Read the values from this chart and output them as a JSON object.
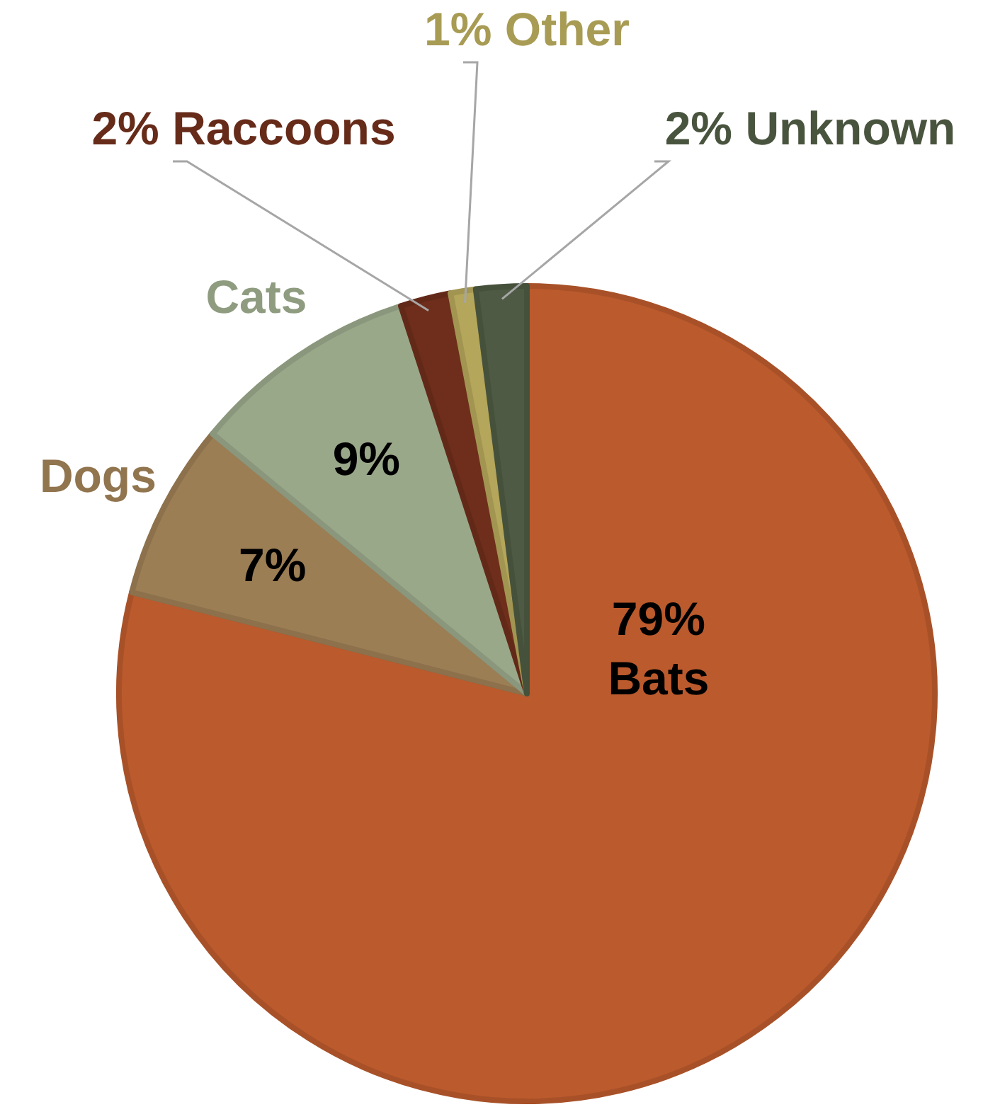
{
  "chart_data": {
    "type": "pie",
    "categories": [
      "Bats",
      "Dogs",
      "Cats",
      "Raccoons",
      "Other",
      "Unknown"
    ],
    "values": [
      79,
      7,
      9,
      2,
      1,
      2
    ],
    "value_labels": [
      "79%",
      "7%",
      "9%",
      "2%",
      "1%",
      "2%"
    ],
    "colors": [
      "#bb5a2d",
      "#9c7e55",
      "#9aa88a",
      "#6e2e1b",
      "#b4a65a",
      "#4e5a43"
    ]
  }
}
